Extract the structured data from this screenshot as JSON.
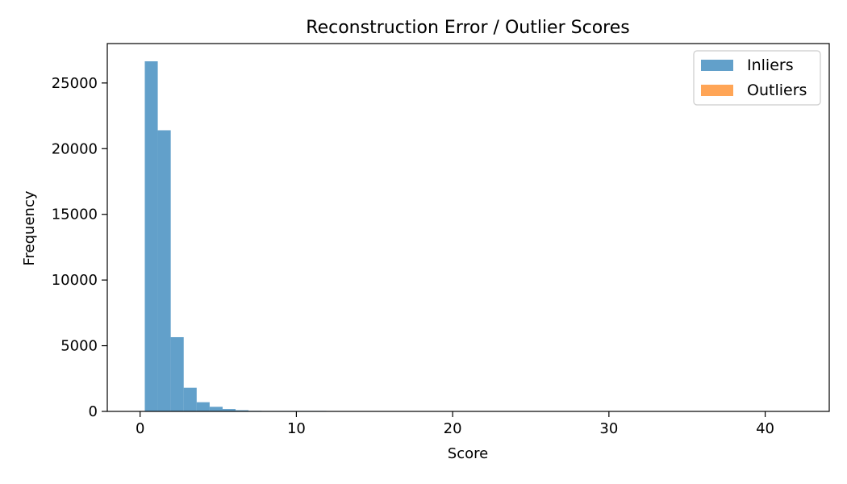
{
  "chart_data": {
    "type": "bar",
    "title": "Reconstruction Error / Outlier Scores",
    "xlabel": "Score",
    "ylabel": "Frequency",
    "xlim": [
      -2.1,
      44.1
    ],
    "ylim": [
      0,
      28000
    ],
    "xticks": [
      0,
      10,
      20,
      30,
      40
    ],
    "yticks": [
      0,
      5000,
      10000,
      15000,
      20000,
      25000
    ],
    "grid": false,
    "legend_position": "top-right",
    "series": [
      {
        "name": "Inliers",
        "color": "#1f77b4",
        "opacity": 0.7,
        "bin_edges": [
          0.3,
          1.13,
          1.96,
          2.79,
          3.62,
          4.45,
          5.28,
          6.11,
          6.94,
          7.77,
          8.6,
          9.43,
          10.26,
          11.09,
          11.92
        ],
        "counts": [
          26650,
          21400,
          5650,
          1800,
          700,
          350,
          180,
          90,
          45,
          25,
          15,
          10,
          5,
          3
        ]
      },
      {
        "name": "Outliers",
        "color": "#ff7f0e",
        "opacity": 0.7,
        "bin_edges": [
          12,
          42
        ],
        "counts": [
          0
        ]
      }
    ]
  }
}
